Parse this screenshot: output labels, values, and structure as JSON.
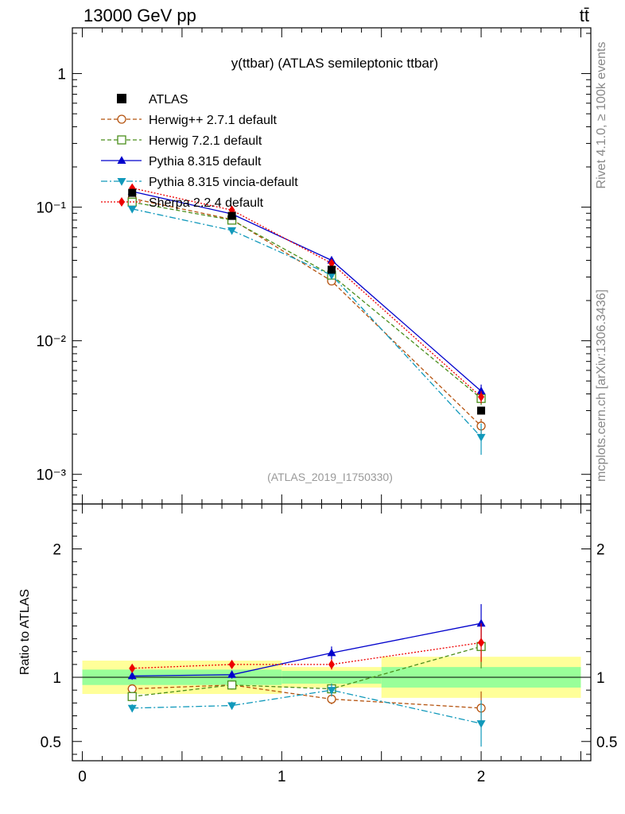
{
  "header": {
    "left": "13000 GeV pp",
    "right": "tt̄"
  },
  "side_labels": {
    "rivet": "Rivet 4.1.0, ≥ 100k events",
    "mcplots": "mcplots.cern.ch [arXiv:1306.3436]"
  },
  "chart_data": [
    {
      "type": "scatter",
      "title": "y(ttbar) (ATLAS semileptonic ttbar)",
      "analysis_label": "(ATLAS_2019_I1750330)",
      "yscale": "log",
      "ylim": [
        0.0006,
        2.2
      ],
      "xlim": [
        -0.05,
        2.55
      ],
      "ytick_labels": [
        {
          "value": 1,
          "label": "1"
        },
        {
          "value": 0.1,
          "label": "10⁻¹"
        },
        {
          "value": 0.01,
          "label": "10⁻²"
        },
        {
          "value": 0.001,
          "label": "10⁻³"
        }
      ],
      "legend_position": "top-left",
      "data": {
        "name": "ATLAS",
        "x": [
          0.25,
          0.75,
          1.25,
          2.0
        ],
        "y": [
          0.128,
          0.086,
          0.034,
          0.003
        ],
        "color": "#000000"
      },
      "series": [
        {
          "name": "Herwig++ 2.7.1 default",
          "marker": "circle-open",
          "line": "dashed",
          "color": "#b5530f",
          "x": [
            0.25,
            0.75,
            1.25,
            2.0
          ],
          "y": [
            0.116,
            0.081,
            0.028,
            0.0023
          ],
          "err": [
            0.003,
            0.002,
            0.001,
            0.0003
          ]
        },
        {
          "name": "Herwig 7.2.1 default",
          "marker": "square-open",
          "line": "dashed",
          "color": "#4a8e1b",
          "x": [
            0.25,
            0.75,
            1.25,
            2.0
          ],
          "y": [
            0.109,
            0.08,
            0.031,
            0.0037
          ],
          "err": [
            0.003,
            0.002,
            0.001,
            0.0004
          ]
        },
        {
          "name": "Pythia 8.315 default",
          "marker": "triangle-up",
          "line": "solid",
          "color": "#0000cc",
          "x": [
            0.25,
            0.75,
            1.25,
            2.0
          ],
          "y": [
            0.131,
            0.089,
            0.04,
            0.0042
          ],
          "err": [
            0.003,
            0.002,
            0.002,
            0.0005
          ]
        },
        {
          "name": "Pythia 8.315 vincia-default",
          "marker": "triangle-down",
          "line": "dashdot",
          "color": "#1199bb",
          "x": [
            0.25,
            0.75,
            1.25,
            2.0
          ],
          "y": [
            0.097,
            0.067,
            0.031,
            0.0019
          ],
          "err": [
            0.003,
            0.002,
            0.001,
            0.0005
          ]
        },
        {
          "name": "Sherpa 2.2.4 default",
          "marker": "diamond",
          "line": "dotted",
          "color": "#ee0000",
          "x": [
            0.25,
            0.75,
            1.25,
            2.0
          ],
          "y": [
            0.139,
            0.095,
            0.038,
            0.0038
          ],
          "err": [
            0.003,
            0.002,
            0.001,
            0.0004
          ]
        }
      ]
    },
    {
      "type": "scatter",
      "ylabel": "Ratio to ATLAS",
      "ylim": [
        0.35,
        2.35
      ],
      "xlim": [
        -0.05,
        2.55
      ],
      "ytick_labels": [
        {
          "value": 2,
          "label": "2"
        },
        {
          "value": 1,
          "label": "1"
        },
        {
          "value": 0.5,
          "label": "0.5"
        }
      ],
      "xtick_labels": [
        {
          "value": 0,
          "label": "0"
        },
        {
          "value": 1,
          "label": "1"
        },
        {
          "value": 2,
          "label": "2"
        }
      ],
      "uncertainty_bands": [
        {
          "x0": 0.0,
          "x1": 1.0,
          "inner": [
            0.94,
            1.06
          ],
          "outer": [
            0.87,
            1.13
          ]
        },
        {
          "x0": 1.0,
          "x1": 1.5,
          "inner": [
            0.95,
            1.05
          ],
          "outer": [
            0.92,
            1.08
          ]
        },
        {
          "x0": 1.5,
          "x1": 2.5,
          "inner": [
            0.92,
            1.08
          ],
          "outer": [
            0.84,
            1.16
          ]
        }
      ],
      "series": [
        {
          "name": "Herwig++ 2.7.1 default",
          "x": [
            0.25,
            0.75,
            1.25,
            2.0
          ],
          "y": [
            0.91,
            0.94,
            0.83,
            0.76
          ],
          "err": [
            0.03,
            0.03,
            0.04,
            0.13
          ]
        },
        {
          "name": "Herwig 7.2.1 default",
          "x": [
            0.25,
            0.75,
            1.25,
            2.0
          ],
          "y": [
            0.85,
            0.94,
            0.91,
            1.24
          ],
          "err": [
            0.03,
            0.03,
            0.04,
            0.17
          ]
        },
        {
          "name": "Pythia 8.315 default",
          "x": [
            0.25,
            0.75,
            1.25,
            2.0
          ],
          "y": [
            1.01,
            1.02,
            1.19,
            1.42
          ],
          "err": [
            0.03,
            0.03,
            0.05,
            0.15
          ]
        },
        {
          "name": "Pythia 8.315 vincia-default",
          "x": [
            0.25,
            0.75,
            1.25,
            2.0
          ],
          "y": [
            0.76,
            0.78,
            0.9,
            0.64
          ],
          "err": [
            0.03,
            0.03,
            0.05,
            0.18
          ]
        },
        {
          "name": "Sherpa 2.2.4 default",
          "x": [
            0.25,
            0.75,
            1.25,
            2.0
          ],
          "y": [
            1.07,
            1.1,
            1.1,
            1.27
          ],
          "err": [
            0.03,
            0.03,
            0.04,
            0.15
          ]
        }
      ]
    }
  ]
}
